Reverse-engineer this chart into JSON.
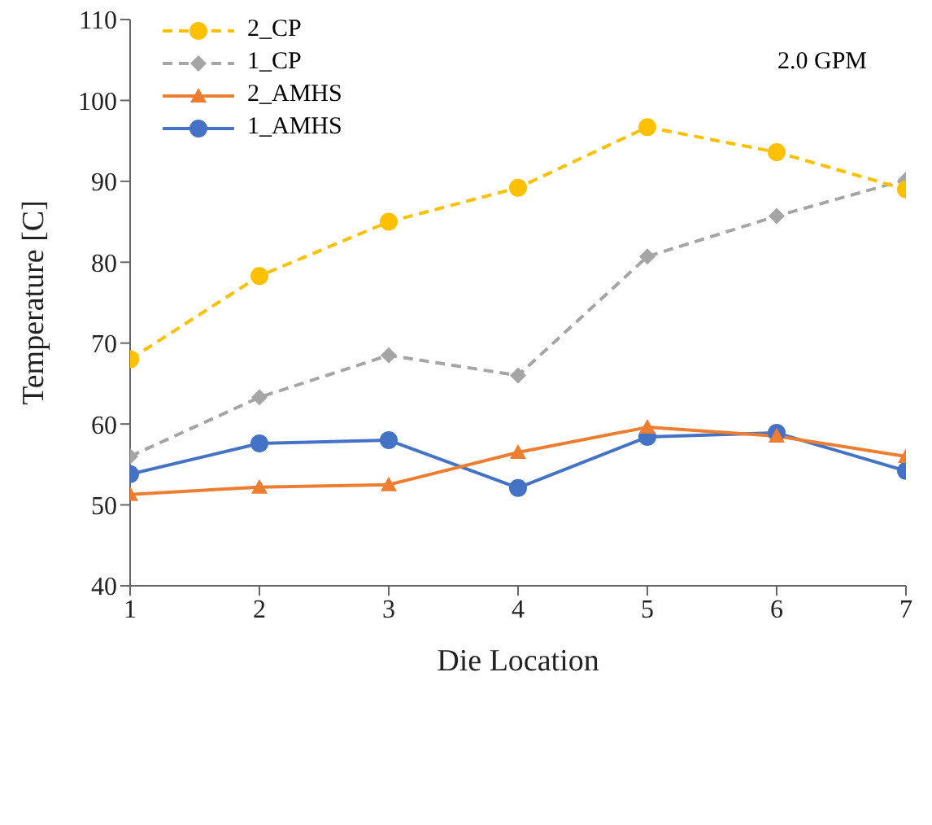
{
  "chart_data": {
    "type": "line",
    "xlabel": "Die Location",
    "ylabel": "Temperature [C]",
    "annotations": [
      "2.0 GPM"
    ],
    "x": [
      1,
      2,
      3,
      4,
      5,
      6,
      7
    ],
    "xlim": [
      1,
      7
    ],
    "xticks": [
      1,
      2,
      3,
      4,
      5,
      6,
      7
    ],
    "ylim": [
      40,
      110
    ],
    "yticks": [
      40,
      50,
      60,
      70,
      80,
      90,
      100,
      110
    ],
    "grid": false,
    "legend": "top left",
    "series": [
      {
        "name": "2_CP",
        "color": "#ffc000",
        "marker": "circle",
        "line_style": "dashed",
        "values": [
          68,
          78.3,
          85,
          89.2,
          96.7,
          93.6,
          89
        ]
      },
      {
        "name": "1_CP",
        "color": "#a5a5a5",
        "marker": "diamond",
        "line_style": "dashed",
        "values": [
          56,
          63.3,
          68.5,
          66,
          80.7,
          85.7,
          90.2
        ]
      },
      {
        "name": "2_AMHS",
        "color": "#ed7d31",
        "marker": "triangle",
        "line_style": "solid",
        "values": [
          51.3,
          52.2,
          52.5,
          56.5,
          59.6,
          58.5,
          56
        ]
      },
      {
        "name": "1_AMHS",
        "color": "#4472c4",
        "marker": "circle",
        "line_style": "solid",
        "values": [
          53.8,
          57.6,
          58,
          52.1,
          58.4,
          58.9,
          54.2
        ]
      }
    ]
  }
}
